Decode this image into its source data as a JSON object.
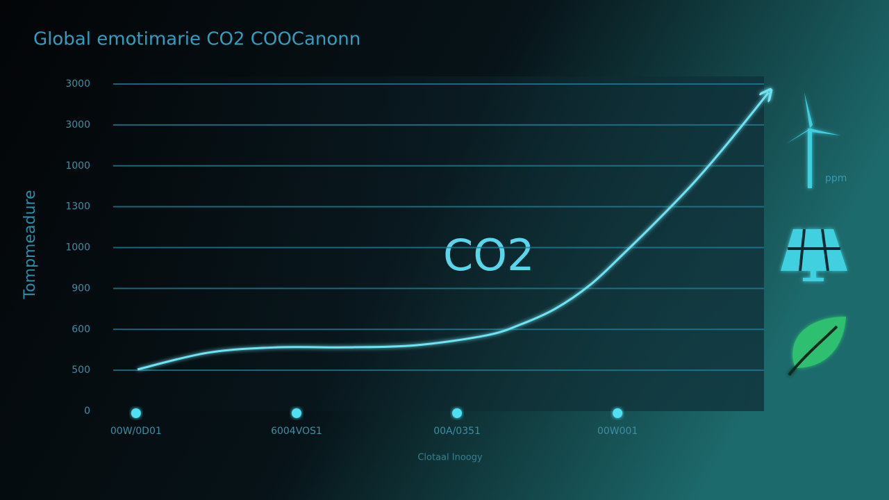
{
  "chart_data": {
    "type": "line",
    "title": "Global emotimarie CO2 COOCanonn",
    "y_label": "Tompmeadure",
    "x_label": "Clotaal Inoogy",
    "annotations": [
      "CO2",
      "ppm"
    ],
    "xlim": [
      -0.22,
      3.99
    ],
    "xticks": [
      {
        "value": 0,
        "label": "00W/0D01"
      },
      {
        "value": 1,
        "label": "6004VOS1"
      },
      {
        "value": 2,
        "label": "00A/0351"
      },
      {
        "value": 3,
        "label": "00W001"
      }
    ],
    "ylim": [
      0,
      8
    ],
    "yticks": [
      {
        "value": 0,
        "label": "0"
      },
      {
        "value": 1,
        "label": "500"
      },
      {
        "value": 2,
        "label": "600"
      },
      {
        "value": 3,
        "label": "900"
      },
      {
        "value": 4,
        "label": "1000"
      },
      {
        "value": 5,
        "label": "1300"
      },
      {
        "value": 6,
        "label": "1000"
      },
      {
        "value": 7,
        "label": "3000"
      },
      {
        "value": 8,
        "label": "3000"
      }
    ],
    "grid": true,
    "series": [
      {
        "color": "#6fe3f2",
        "x": [
          0.01,
          0.45,
          0.88,
          1.31,
          1.74,
          2.18,
          2.39,
          2.61,
          2.83,
          3.04,
          3.26,
          3.48,
          3.69,
          3.94
        ],
        "values": [
          1.02,
          1.43,
          1.56,
          1.56,
          1.61,
          1.85,
          2.11,
          2.5,
          3.09,
          3.86,
          4.71,
          5.61,
          6.57,
          7.79
        ]
      }
    ]
  }
}
